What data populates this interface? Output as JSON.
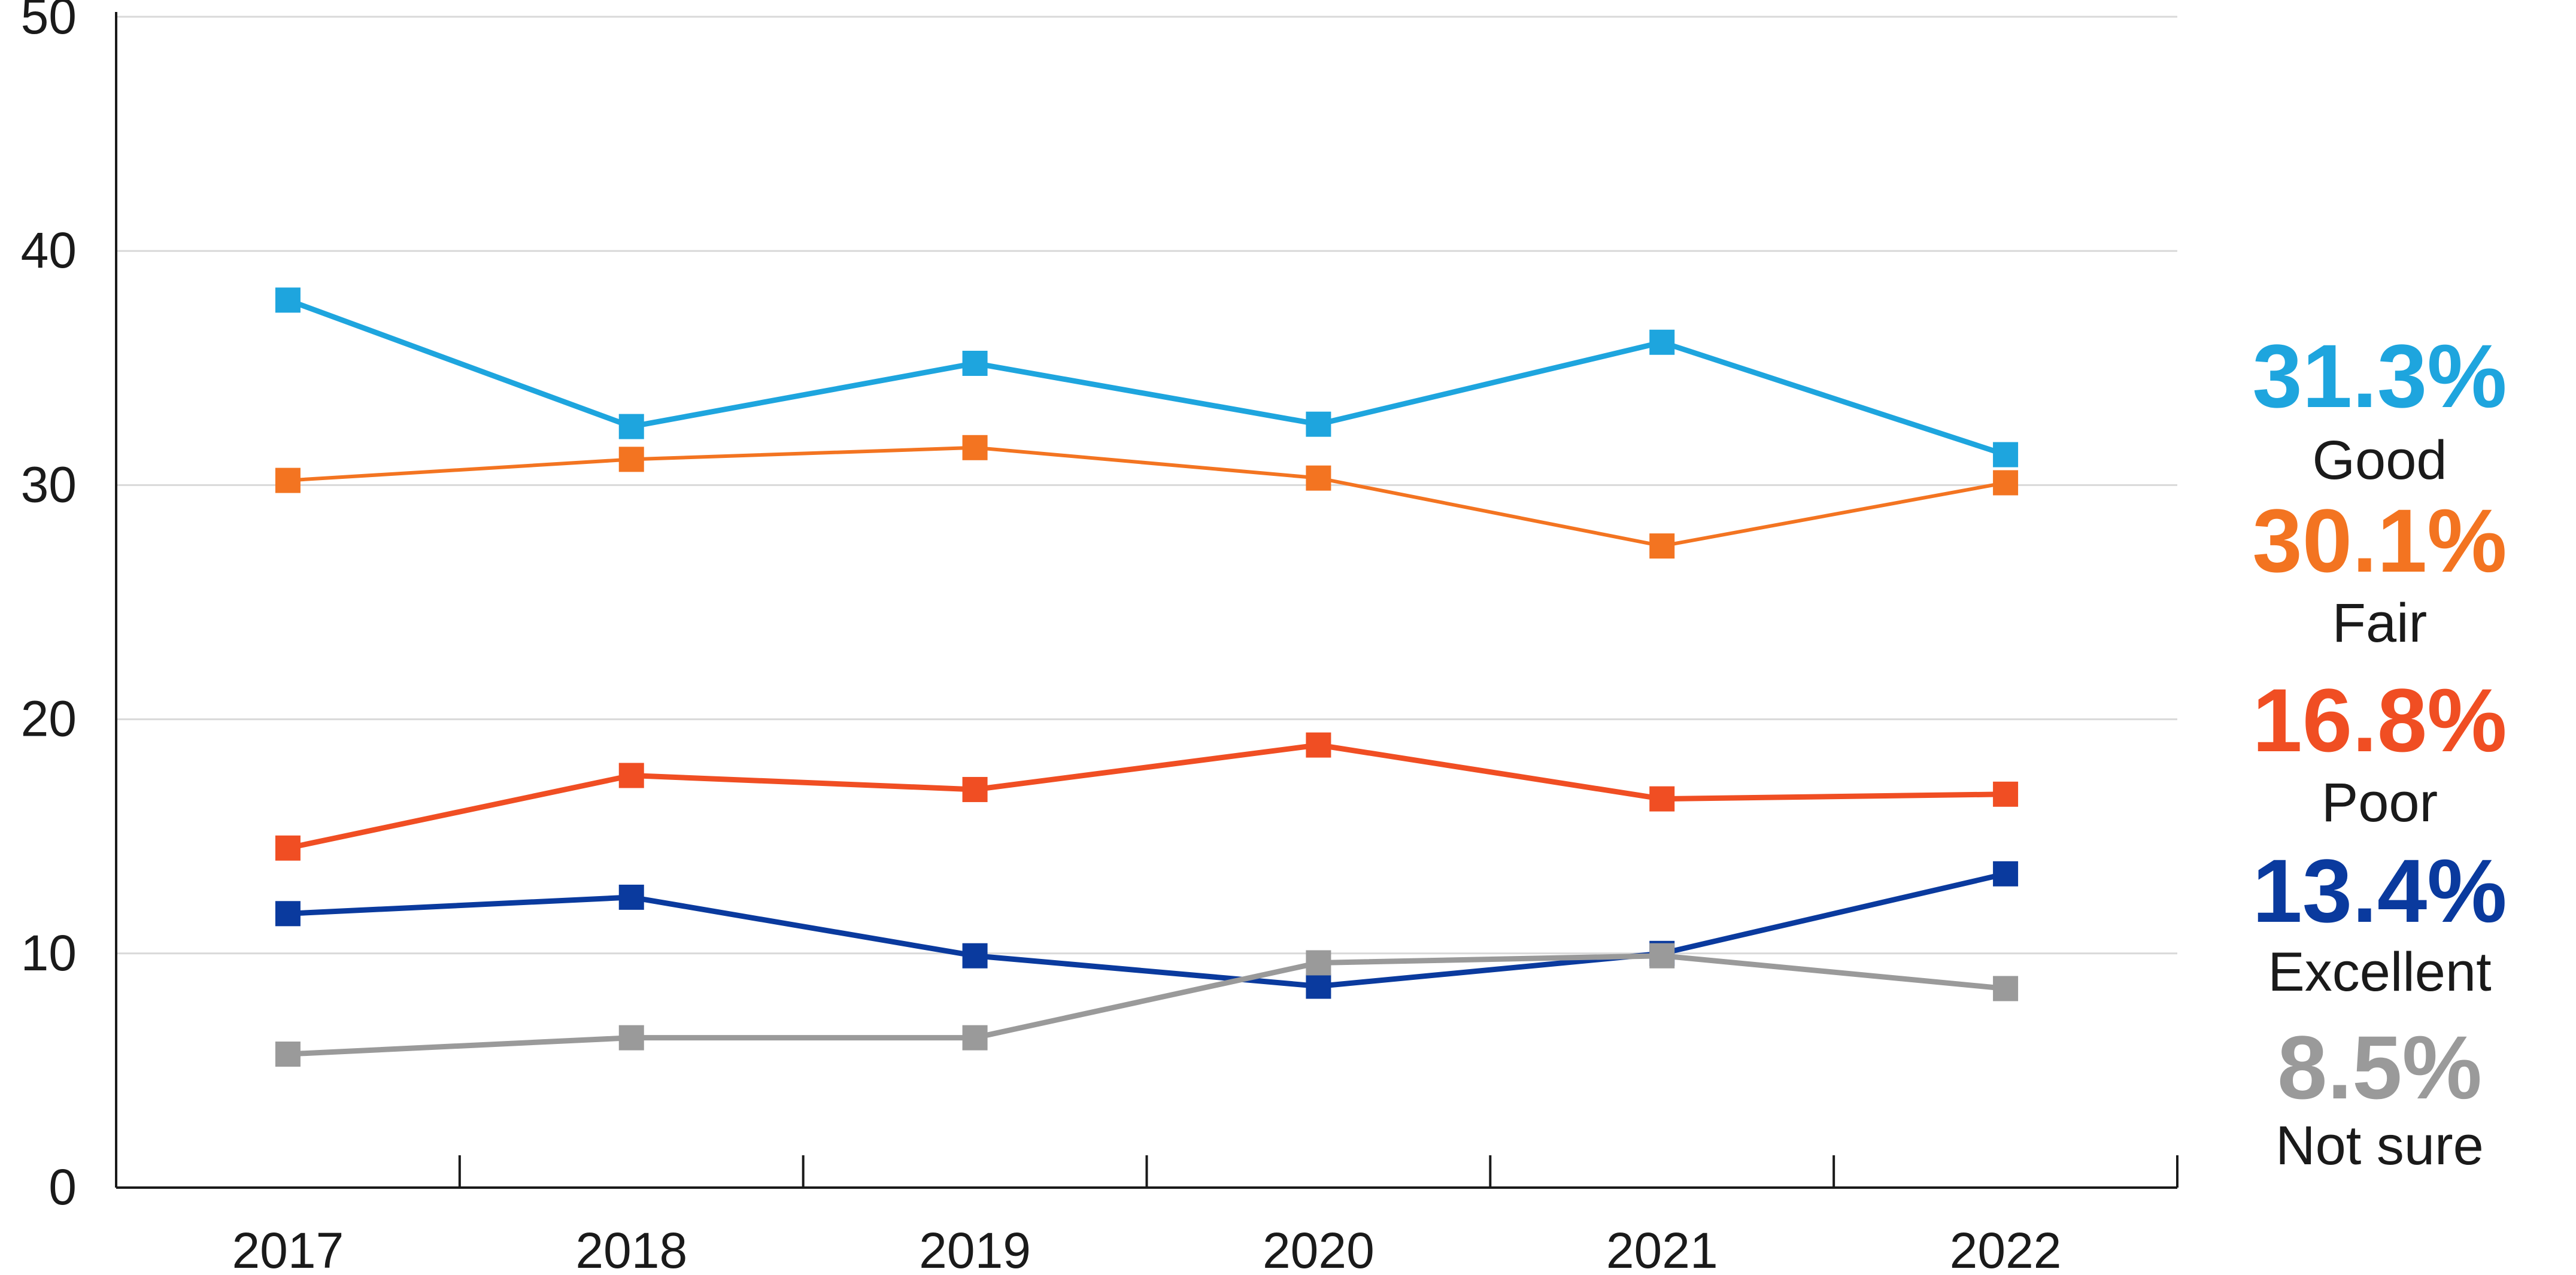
{
  "chart_data": {
    "type": "line",
    "x": [
      "2017",
      "2018",
      "2019",
      "2020",
      "2021",
      "2022"
    ],
    "ylim": [
      0,
      50
    ],
    "yticks": [
      "0",
      "10",
      "20",
      "30",
      "40",
      "50"
    ],
    "grid": true,
    "legend": "right-end-labels",
    "series": [
      {
        "name": "Good",
        "color": "#1ea5de",
        "values": [
          37.9,
          32.5,
          35.2,
          32.6,
          36.1,
          31.3
        ],
        "end_label": "31.3%"
      },
      {
        "name": "Fair",
        "color": "#f37421",
        "values": [
          30.2,
          31.1,
          31.6,
          30.3,
          27.4,
          30.1
        ],
        "end_label": "30.1%"
      },
      {
        "name": "Poor",
        "color": "#f04e23",
        "values": [
          14.5,
          17.6,
          17.0,
          18.9,
          16.6,
          16.8
        ],
        "end_label": "16.8%"
      },
      {
        "name": "Excellent",
        "color": "#0a3a9e",
        "values": [
          11.7,
          12.4,
          9.9,
          8.6,
          10.0,
          13.4
        ],
        "end_label": "13.4%"
      },
      {
        "name": "Not sure",
        "color": "#9a9a9a",
        "values": [
          5.7,
          6.4,
          6.4,
          9.6,
          9.9,
          8.5
        ],
        "end_label": "8.5%"
      }
    ]
  }
}
